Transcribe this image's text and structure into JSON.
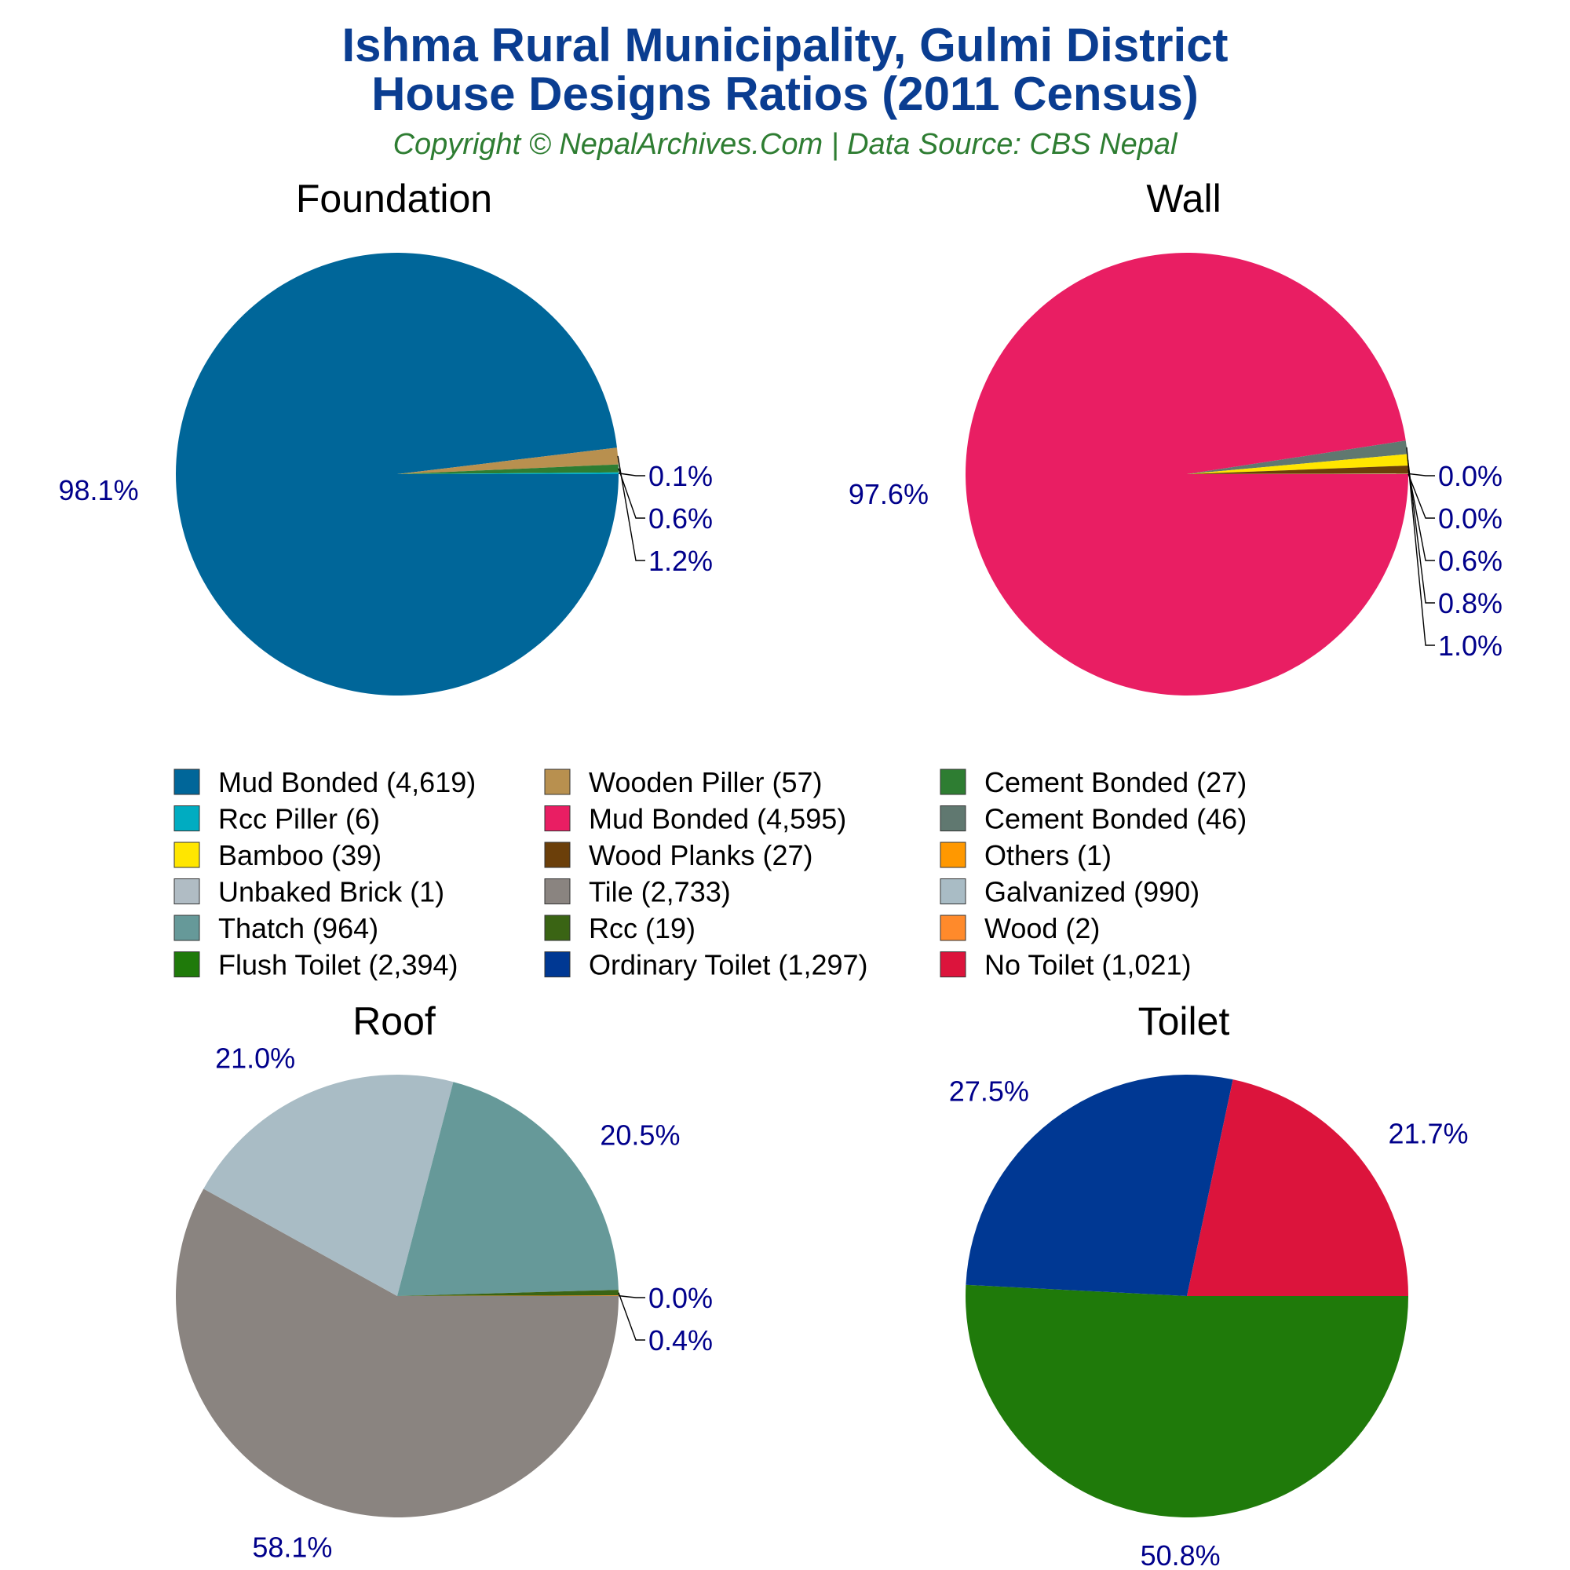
{
  "header": {
    "title_line1": "Ishma Rural Municipality, Gulmi District",
    "title_line2": "House Designs Ratios (2011 Census)",
    "subtitle": "Copyright © NepalArchives.Com | Data Source: CBS Nepal"
  },
  "legend": [
    {
      "label": "Mud Bonded (4,619)",
      "color": "#006699"
    },
    {
      "label": "Wooden Piller (57)",
      "color": "#b8904f"
    },
    {
      "label": "Cement Bonded (27)",
      "color": "#2e7d32"
    },
    {
      "label": "Rcc Piller (6)",
      "color": "#00acc1"
    },
    {
      "label": "Mud Bonded (4,595)",
      "color": "#e91e63"
    },
    {
      "label": "Cement Bonded (46)",
      "color": "#607870"
    },
    {
      "label": "Bamboo (39)",
      "color": "#ffe600"
    },
    {
      "label": "Wood Planks (27)",
      "color": "#6b3f0a"
    },
    {
      "label": "Others (1)",
      "color": "#ff9800"
    },
    {
      "label": "Unbaked Brick (1)",
      "color": "#b0bcc4"
    },
    {
      "label": "Tile (2,733)",
      "color": "#8a8480"
    },
    {
      "label": "Galvanized (990)",
      "color": "#a9bcc5"
    },
    {
      "label": "Thatch (964)",
      "color": "#669999"
    },
    {
      "label": "Rcc (19)",
      "color": "#3a6414"
    },
    {
      "label": "Wood (2)",
      "color": "#ff8a2b"
    },
    {
      "label": "Flush Toilet (2,394)",
      "color": "#1f7a0a"
    },
    {
      "label": "Ordinary Toilet (1,297)",
      "color": "#003893"
    },
    {
      "label": "No Toilet (1,021)",
      "color": "#dc143c"
    }
  ],
  "chart_data": [
    {
      "type": "pie",
      "title": "Foundation",
      "start_angle_deg": 0,
      "slices": [
        {
          "label": "Mud Bonded",
          "value": 4619,
          "pct": "98.1%",
          "color": "#006699"
        },
        {
          "label": "Wooden Piller",
          "value": 57,
          "pct": "1.2%",
          "color": "#b8904f"
        },
        {
          "label": "Cement Bonded",
          "value": 27,
          "pct": "0.6%",
          "color": "#2e7d32"
        },
        {
          "label": "Rcc Piller",
          "value": 6,
          "pct": "0.1%",
          "color": "#00acc1"
        }
      ]
    },
    {
      "type": "pie",
      "title": "Wall",
      "start_angle_deg": 0,
      "slices": [
        {
          "label": "Mud Bonded",
          "value": 4595,
          "pct": "97.6%",
          "color": "#e91e63"
        },
        {
          "label": "Cement Bonded",
          "value": 46,
          "pct": "1.0%",
          "color": "#607870"
        },
        {
          "label": "Bamboo",
          "value": 39,
          "pct": "0.8%",
          "color": "#ffe600"
        },
        {
          "label": "Wood Planks",
          "value": 27,
          "pct": "0.6%",
          "color": "#6b3f0a"
        },
        {
          "label": "Others",
          "value": 1,
          "pct": "0.0%",
          "color": "#ff9800"
        },
        {
          "label": "Unbaked Brick",
          "value": 1,
          "pct": "0.0%",
          "color": "#b0bcc4"
        }
      ]
    },
    {
      "type": "pie",
      "title": "Roof",
      "start_angle_deg": 0,
      "slices": [
        {
          "label": "Tile",
          "value": 2733,
          "pct": "58.1%",
          "color": "#8a8480"
        },
        {
          "label": "Galvanized",
          "value": 990,
          "pct": "21.0%",
          "color": "#a9bcc5"
        },
        {
          "label": "Thatch",
          "value": 964,
          "pct": "20.5%",
          "color": "#669999"
        },
        {
          "label": "Rcc",
          "value": 19,
          "pct": "0.4%",
          "color": "#3a6414"
        },
        {
          "label": "Wood",
          "value": 2,
          "pct": "0.0%",
          "color": "#ff8a2b"
        }
      ]
    },
    {
      "type": "pie",
      "title": "Toilet",
      "start_angle_deg": 0,
      "slices": [
        {
          "label": "Flush Toilet",
          "value": 2394,
          "pct": "50.8%",
          "color": "#1f7a0a"
        },
        {
          "label": "Ordinary Toilet",
          "value": 1297,
          "pct": "27.5%",
          "color": "#003893"
        },
        {
          "label": "No Toilet",
          "value": 1021,
          "pct": "21.7%",
          "color": "#dc143c"
        }
      ]
    }
  ]
}
